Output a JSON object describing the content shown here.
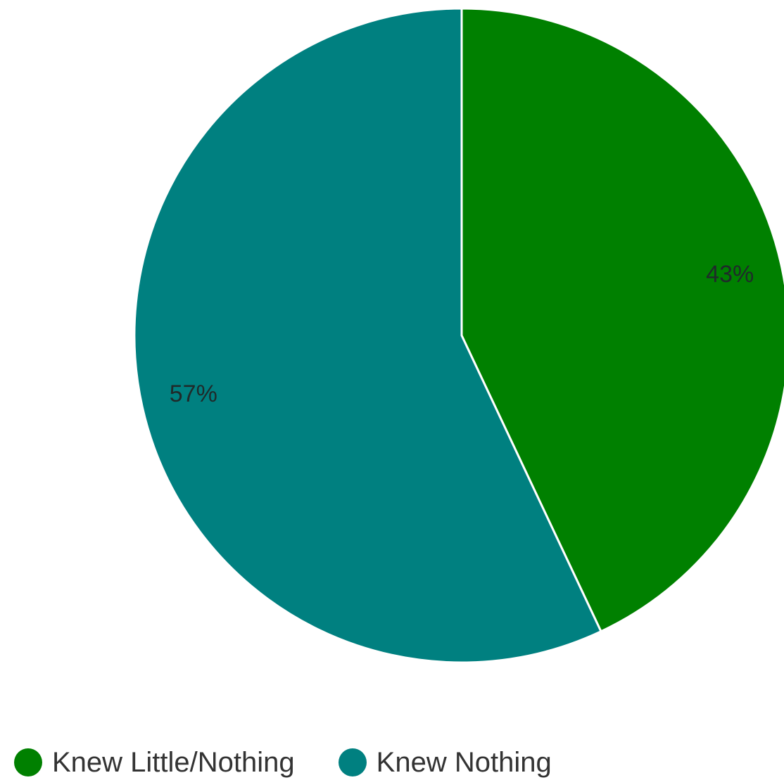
{
  "chart_data": {
    "type": "pie",
    "slices": [
      {
        "name": "Knew Little/Nothing",
        "value": 43,
        "label": "43%",
        "color": "#008000"
      },
      {
        "name": "Knew Nothing",
        "value": 57,
        "label": "57%",
        "color": "#008080"
      }
    ],
    "legend_position": "bottom-left"
  },
  "legend": {
    "items": [
      {
        "label": "Knew Little/Nothing",
        "color": "#008000"
      },
      {
        "label": "Knew Nothing",
        "color": "#008080"
      }
    ]
  }
}
